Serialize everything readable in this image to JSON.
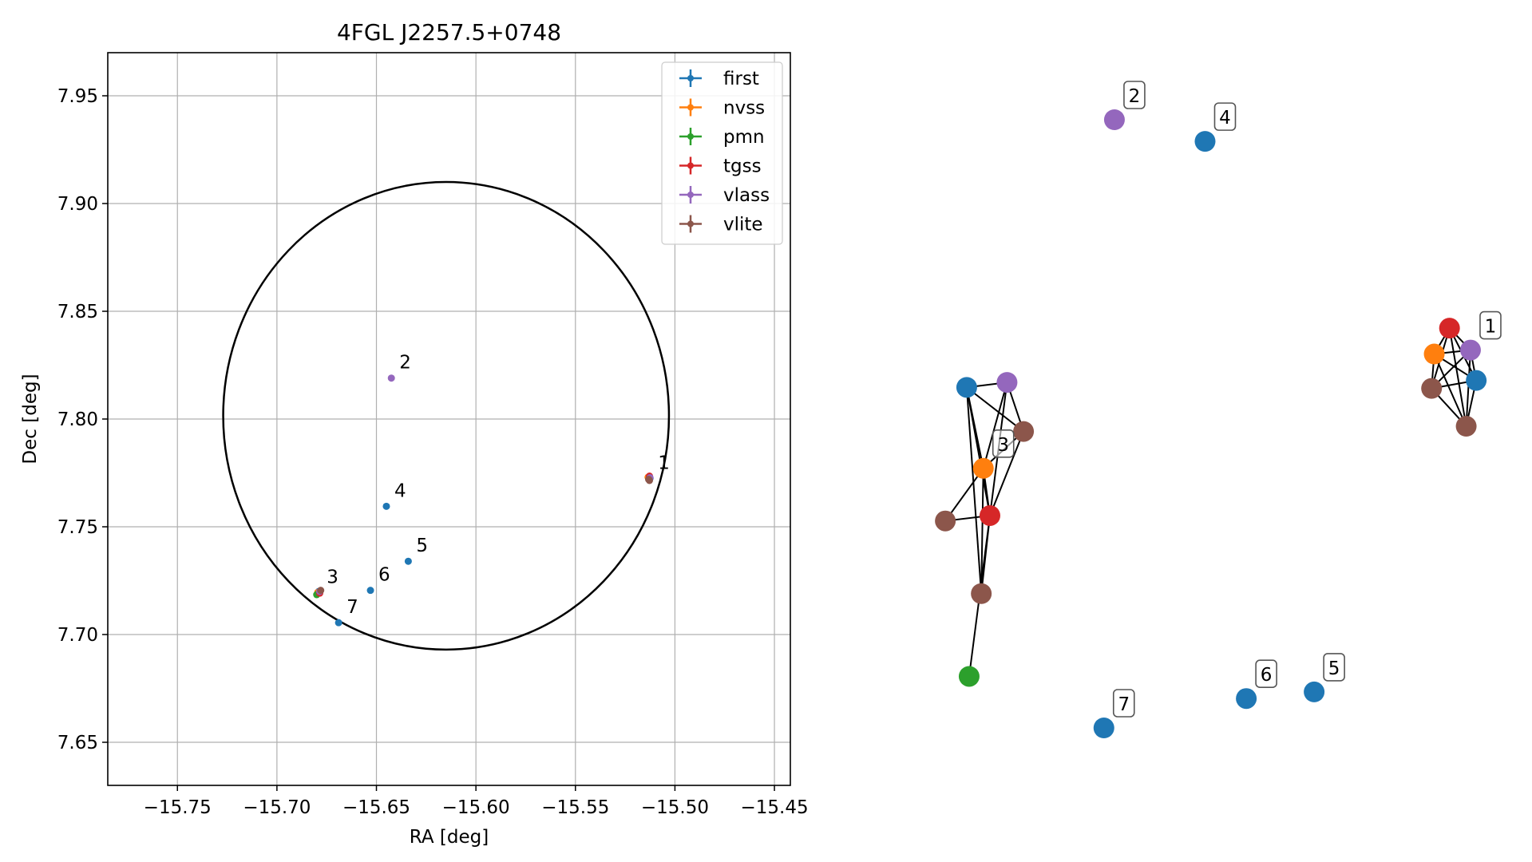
{
  "colors": {
    "first": "#1f77b4",
    "nvss": "#ff7f0e",
    "pmn": "#2ca02c",
    "tgss": "#d62728",
    "vlass": "#9467bd",
    "vlite": "#8c564b",
    "circle": "#000000",
    "grid": "#b0b0b0"
  },
  "chart_data": [
    {
      "type": "scatter",
      "title": "4FGL J2257.5+0748",
      "xlabel": "RA [deg]",
      "ylabel": "Dec [deg]",
      "xlim": [
        -15.785,
        -15.442
      ],
      "ylim": [
        7.63,
        7.97
      ],
      "xticks": [
        -15.75,
        -15.7,
        -15.65,
        -15.6,
        -15.55,
        -15.5,
        -15.45
      ],
      "xtick_labels": [
        "−15.75",
        "−15.70",
        "−15.65",
        "−15.60",
        "−15.55",
        "−15.50",
        "−15.45"
      ],
      "yticks": [
        7.65,
        7.7,
        7.75,
        7.8,
        7.85,
        7.9,
        7.95
      ],
      "ytick_labels": [
        "7.65",
        "7.70",
        "7.75",
        "7.80",
        "7.85",
        "7.90",
        "7.95"
      ],
      "grid": true,
      "legend_position": "top-right",
      "ellipse": {
        "center": [
          -15.615,
          7.8015
        ],
        "rx_deg": 0.112,
        "ry_deg": 0.1085
      },
      "series": [
        {
          "name": "first",
          "points": [
            [
              -15.5125,
              7.7725
            ],
            [
              -15.645,
              7.7595
            ],
            [
              -15.634,
              7.734
            ],
            [
              -15.653,
              7.7205
            ],
            [
              -15.669,
              7.7055
            ],
            [
              -15.679,
              7.72
            ]
          ]
        },
        {
          "name": "nvss",
          "points": [
            [
              -15.5135,
              7.773
            ],
            [
              -15.6795,
              7.7195
            ]
          ]
        },
        {
          "name": "pmn",
          "points": [
            [
              -15.68,
              7.7185
            ]
          ]
        },
        {
          "name": "tgss",
          "points": [
            [
              -15.5128,
              7.7735
            ],
            [
              -15.6785,
              7.7192
            ]
          ]
        },
        {
          "name": "vlass",
          "points": [
            [
              -15.6425,
              7.819
            ],
            [
              -15.5125,
              7.7728
            ],
            [
              -15.6785,
              7.72
            ]
          ]
        },
        {
          "name": "vlite",
          "points": [
            [
              -15.5132,
              7.772
            ],
            [
              -15.678,
              7.7205
            ],
            [
              -15.5128,
              7.7715
            ]
          ]
        }
      ],
      "annotations": [
        {
          "text": "1",
          "x": -15.5125,
          "y": 7.7725
        },
        {
          "text": "2",
          "x": -15.6425,
          "y": 7.819
        },
        {
          "text": "3",
          "x": -15.679,
          "y": 7.7195
        },
        {
          "text": "4",
          "x": -15.645,
          "y": 7.7595
        },
        {
          "text": "5",
          "x": -15.634,
          "y": 7.734
        },
        {
          "text": "6",
          "x": -15.653,
          "y": 7.7205
        },
        {
          "text": "7",
          "x": -15.669,
          "y": 7.7055
        }
      ]
    },
    {
      "type": "network",
      "nodes": [
        {
          "id": "g1_tgss",
          "series": "tgss",
          "x": 0.9058,
          "y": 0.6573
        },
        {
          "id": "g1_nvss",
          "series": "nvss",
          "x": 0.8805,
          "y": 0.6148
        },
        {
          "id": "g1_vlass",
          "series": "vlass",
          "x": 0.9405,
          "y": 0.6213
        },
        {
          "id": "g1_first",
          "series": "first",
          "x": 0.95,
          "y": 0.5713
        },
        {
          "id": "g1_vlite_a",
          "series": "vlite",
          "x": 0.8761,
          "y": 0.5582
        },
        {
          "id": "g1_vlite_b",
          "series": "vlite",
          "x": 0.9334,
          "y": 0.496
        },
        {
          "id": "g3_first",
          "series": "first",
          "x": 0.1069,
          "y": 0.5599
        },
        {
          "id": "g3_vlass",
          "series": "vlass",
          "x": 0.1736,
          "y": 0.5681
        },
        {
          "id": "g3_vlite_a",
          "series": "vlite",
          "x": 0.2009,
          "y": 0.4874
        },
        {
          "id": "g3_nvss",
          "series": "nvss",
          "x": 0.1344,
          "y": 0.4268
        },
        {
          "id": "g3_vlite_b",
          "series": "vlite",
          "x": 0.0715,
          "y": 0.3403
        },
        {
          "id": "g3_tgss",
          "series": "tgss",
          "x": 0.1453,
          "y": 0.3491
        },
        {
          "id": "g3_vlite_c",
          "series": "vlite",
          "x": 0.131,
          "y": 0.2208
        },
        {
          "id": "g3_pmn",
          "series": "pmn",
          "x": 0.1109,
          "y": 0.0847
        },
        {
          "id": "n2",
          "series": "vlass",
          "x": 0.3513,
          "y": 1.0
        },
        {
          "id": "n4",
          "series": "first",
          "x": 0.5013,
          "y": 0.9644
        },
        {
          "id": "n5",
          "series": "first",
          "x": 0.6818,
          "y": 0.0592
        },
        {
          "id": "n6",
          "series": "first",
          "x": 0.5695,
          "y": 0.0483
        },
        {
          "id": "n7",
          "series": "first",
          "x": 0.3339,
          "y": 0.0
        }
      ],
      "edges": [
        [
          "g1_tgss",
          "g1_nvss"
        ],
        [
          "g1_tgss",
          "g1_vlass"
        ],
        [
          "g1_tgss",
          "g1_first"
        ],
        [
          "g1_tgss",
          "g1_vlite_a"
        ],
        [
          "g1_tgss",
          "g1_vlite_b"
        ],
        [
          "g1_nvss",
          "g1_vlass"
        ],
        [
          "g1_nvss",
          "g1_first"
        ],
        [
          "g1_nvss",
          "g1_vlite_a"
        ],
        [
          "g1_nvss",
          "g1_vlite_b"
        ],
        [
          "g1_vlass",
          "g1_first"
        ],
        [
          "g1_vlass",
          "g1_vlite_a"
        ],
        [
          "g1_vlass",
          "g1_vlite_b"
        ],
        [
          "g1_first",
          "g1_vlite_a"
        ],
        [
          "g1_first",
          "g1_vlite_b"
        ],
        [
          "g1_vlite_a",
          "g1_vlite_b"
        ],
        [
          "g3_first",
          "g3_vlass"
        ],
        [
          "g3_first",
          "g3_vlite_a"
        ],
        [
          "g3_first",
          "g3_nvss"
        ],
        [
          "g3_first",
          "g3_tgss"
        ],
        [
          "g3_first",
          "g3_vlite_c"
        ],
        [
          "g3_vlass",
          "g3_vlite_a"
        ],
        [
          "g3_vlass",
          "g3_nvss"
        ],
        [
          "g3_vlass",
          "g3_tgss"
        ],
        [
          "g3_vlite_a",
          "g3_nvss"
        ],
        [
          "g3_vlite_a",
          "g3_tgss"
        ],
        [
          "g3_nvss",
          "g3_tgss"
        ],
        [
          "g3_nvss",
          "g3_vlite_b"
        ],
        [
          "g3_nvss",
          "g3_vlite_c"
        ],
        [
          "g3_vlite_b",
          "g3_tgss"
        ],
        [
          "g3_tgss",
          "g3_vlite_c"
        ],
        [
          "g3_tgss",
          "g3_pmn"
        ]
      ],
      "labels": [
        {
          "text": "1",
          "node": "g1_vlass"
        },
        {
          "text": "2",
          "node": "n2"
        },
        {
          "text": "3",
          "node": "g3_nvss"
        },
        {
          "text": "4",
          "node": "n4"
        },
        {
          "text": "5",
          "node": "n5"
        },
        {
          "text": "6",
          "node": "n6"
        },
        {
          "text": "7",
          "node": "n7"
        }
      ]
    }
  ]
}
